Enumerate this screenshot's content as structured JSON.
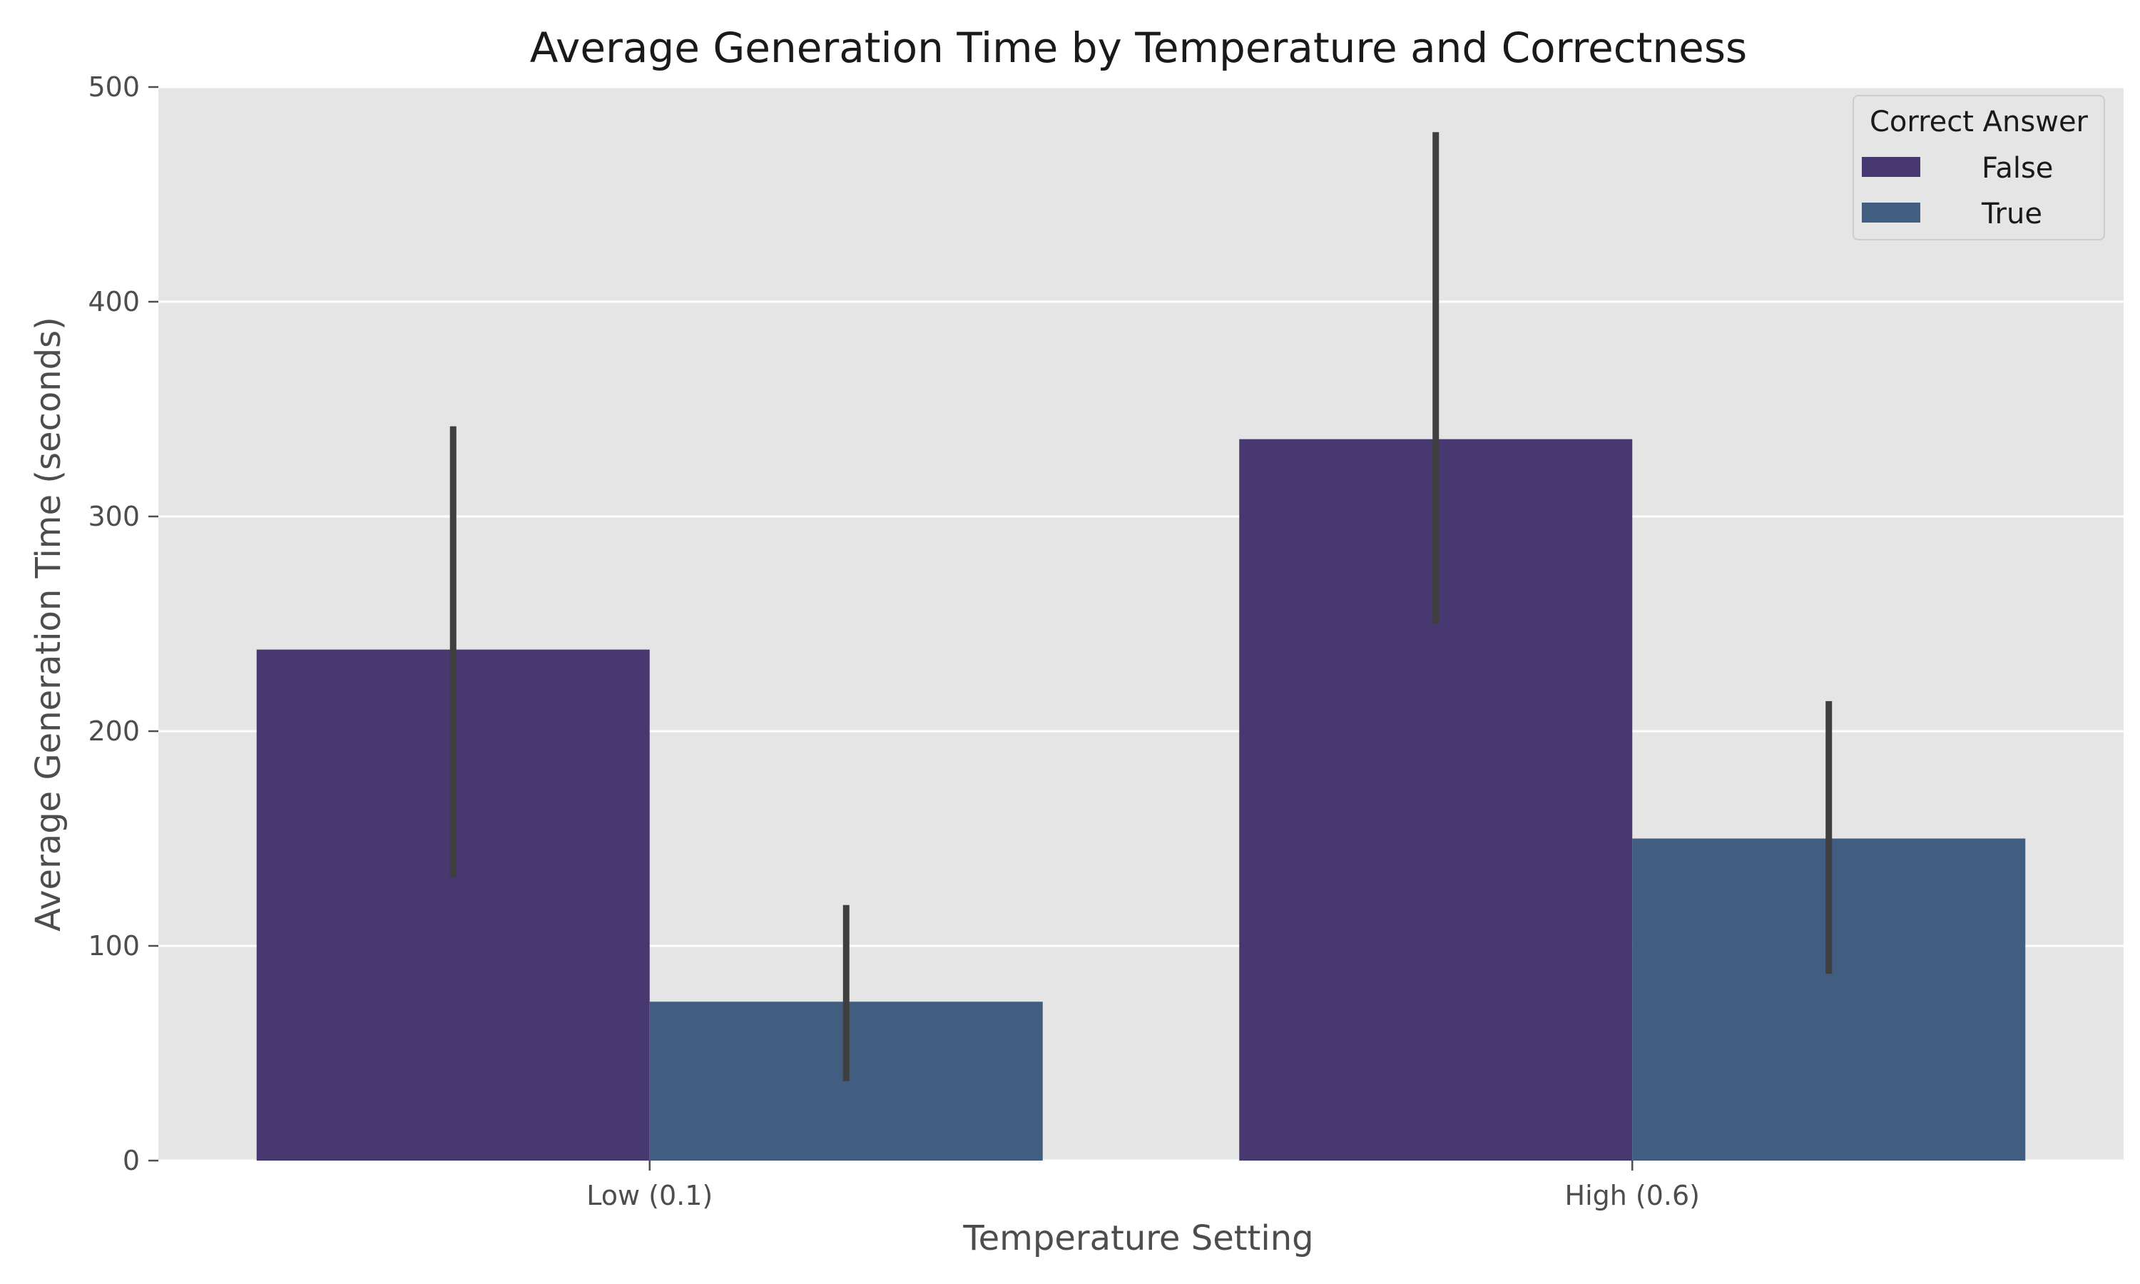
{
  "chart_data": {
    "type": "bar",
    "title": "Average Generation Time by Temperature and Correctness",
    "xlabel": "Temperature Setting",
    "ylabel": "Average Generation Time (seconds)",
    "categories": [
      "Low (0.1)",
      "High (0.6)"
    ],
    "ylim": [
      0,
      500
    ],
    "yticks": [
      0,
      100,
      200,
      300,
      400,
      500
    ],
    "grid": true,
    "legend": {
      "title": "Correct Answer",
      "placement": "top-right"
    },
    "series": [
      {
        "name": "False",
        "color": "#483872",
        "values": [
          238,
          336
        ],
        "error": [
          [
            132,
            342
          ],
          [
            250,
            479
          ]
        ]
      },
      {
        "name": "True",
        "color": "#415e81",
        "values": [
          74,
          150
        ],
        "error": [
          [
            37,
            119
          ],
          [
            87,
            214
          ]
        ]
      }
    ]
  }
}
